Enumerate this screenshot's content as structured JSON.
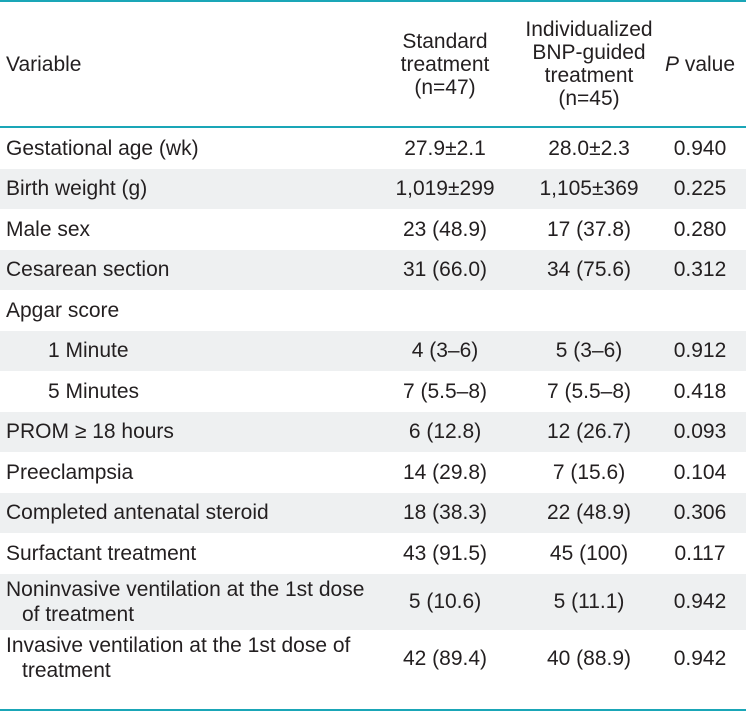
{
  "header": {
    "variable": "Variable",
    "standard": [
      "Standard",
      "treatment",
      "(n=47)"
    ],
    "bnp": [
      "Individualized",
      "BNP-guided",
      "treatment",
      "(n=45)"
    ],
    "p_italic": "P",
    "p_rest": " value"
  },
  "rows": [
    {
      "variable": "Gestational age (wk)",
      "standard": "27.9±2.1",
      "bnp": "28.0±2.3",
      "p": "0.940"
    },
    {
      "variable": "Birth weight (g)",
      "standard": "1,019±299",
      "bnp": "1,105±369",
      "p": "0.225"
    },
    {
      "variable": "Male sex",
      "standard": "23 (48.9)",
      "bnp": "17 (37.8)",
      "p": "0.280"
    },
    {
      "variable": "Cesarean section",
      "standard": "31 (66.0)",
      "bnp": "34 (75.6)",
      "p": "0.312"
    },
    {
      "variable": "Apgar score",
      "standard": "",
      "bnp": "",
      "p": ""
    },
    {
      "variable": "1 Minute",
      "standard": "4 (3–6)",
      "bnp": "5 (3–6)",
      "p": "0.912"
    },
    {
      "variable": "5 Minutes",
      "standard": "7 (5.5–8)",
      "bnp": "7 (5.5–8)",
      "p": "0.418"
    },
    {
      "variable": "PROM ≥ 18 hours",
      "standard": "6 (12.8)",
      "bnp": "12 (26.7)",
      "p": "0.093"
    },
    {
      "variable": "Preeclampsia",
      "standard": "14 (29.8)",
      "bnp": "7 (15.6)",
      "p": "0.104"
    },
    {
      "variable": "Completed antenatal steroid",
      "standard": "18 (38.3)",
      "bnp": "22 (48.9)",
      "p": "0.306"
    },
    {
      "variable": "Surfactant treatment",
      "standard": "43 (91.5)",
      "bnp": "45 (100)",
      "p": "0.117"
    },
    {
      "variable": "Noninvasive ventilation at the 1st dose of treatment",
      "standard": "5 (10.6)",
      "bnp": "5 (11.1)",
      "p": "0.942"
    },
    {
      "variable": "Invasive ventilation at the 1st dose of treatment",
      "standard": "42 (89.4)",
      "bnp": "40 (88.9)",
      "p": "0.942"
    }
  ]
}
